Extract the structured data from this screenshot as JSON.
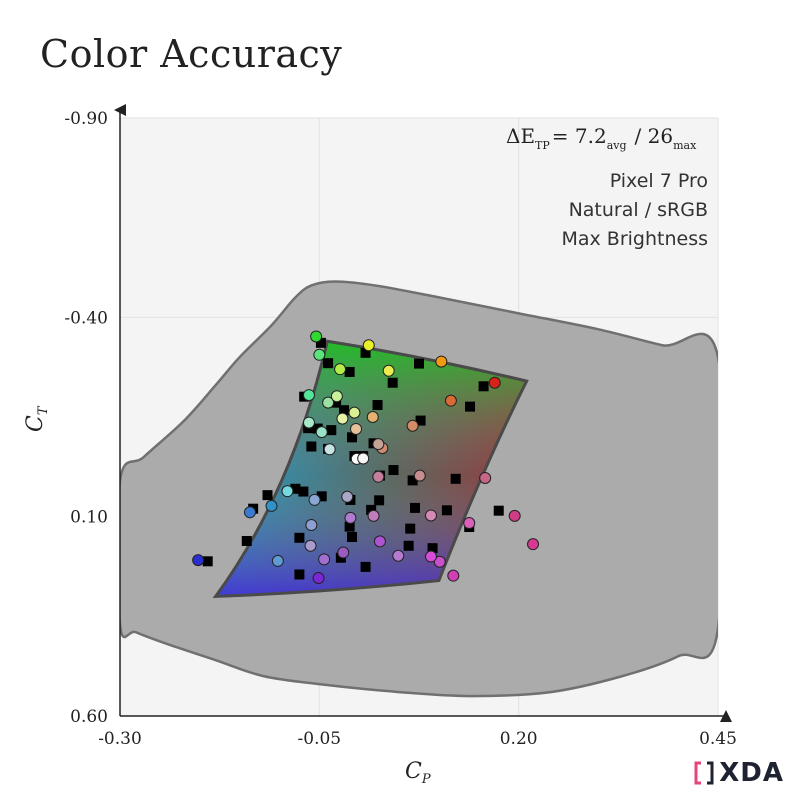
{
  "title": "Color Accuracy",
  "logo_text": "XDA",
  "colors": {
    "plot_bg": "#f4f4f4",
    "outer_gamut": "#ababab",
    "outer_gamut_stroke": "#707070",
    "inner_gamut_stroke": "#505050",
    "logo_accent": "#e5457a"
  },
  "annotations": {
    "metric_prefix": "ΔE",
    "metric_prefix_sub": "TP",
    "metric_eq": "= 7.2",
    "metric_avg_sub": "avg",
    "metric_slash": "/ 26",
    "metric_max_sub": "max",
    "device": "Pixel 7 Pro",
    "mode": "Natural / sRGB",
    "brightness": "Max Brightness"
  },
  "chart_data": {
    "type": "scatter",
    "title": "Color Accuracy",
    "xlabel": "C",
    "xlabel_sub": "P",
    "ylabel": "C",
    "ylabel_sub": "T",
    "xlim": [
      -0.3,
      0.45
    ],
    "ylim": [
      -0.9,
      0.6
    ],
    "y_inverted": true,
    "x_ticks": [
      "-0.30",
      "-0.05",
      "0.20",
      "0.45"
    ],
    "y_ticks": [
      "-0.90",
      "-0.40",
      "0.10",
      "0.60"
    ],
    "grid": true,
    "outer_gamut": [
      [
        -0.3,
        0.01
      ],
      [
        -0.27,
        -0.05
      ],
      [
        -0.22,
        -0.14
      ],
      [
        -0.18,
        -0.23
      ],
      [
        -0.15,
        -0.3
      ],
      [
        -0.11,
        -0.38
      ],
      [
        -0.08,
        -0.45
      ],
      [
        -0.06,
        -0.48
      ],
      [
        -0.03,
        -0.49
      ],
      [
        0.02,
        -0.48
      ],
      [
        0.1,
        -0.45
      ],
      [
        0.2,
        -0.41
      ],
      [
        0.3,
        -0.37
      ],
      [
        0.38,
        -0.33
      ],
      [
        0.45,
        -0.3
      ],
      [
        0.45,
        0.38
      ],
      [
        0.4,
        0.45
      ],
      [
        0.33,
        0.5
      ],
      [
        0.24,
        0.54
      ],
      [
        0.14,
        0.55
      ],
      [
        0.05,
        0.54
      ],
      [
        -0.05,
        0.52
      ],
      [
        -0.12,
        0.5
      ],
      [
        -0.18,
        0.46
      ],
      [
        -0.24,
        0.42
      ],
      [
        -0.28,
        0.39
      ],
      [
        -0.3,
        0.37
      ]
    ],
    "target_gamut": [
      [
        -0.04,
        -0.34
      ],
      [
        0.21,
        -0.24
      ],
      [
        0.1,
        0.26
      ],
      [
        -0.18,
        0.3
      ]
    ],
    "targets": [
      [
        -0.048,
        -0.336
      ],
      [
        0.008,
        -0.311
      ],
      [
        0.075,
        -0.284
      ],
      [
        0.156,
        -0.227
      ],
      [
        -0.039,
        -0.285
      ],
      [
        -0.012,
        -0.263
      ],
      [
        0.042,
        -0.236
      ],
      [
        0.139,
        -0.176
      ],
      [
        -0.069,
        -0.201
      ],
      [
        -0.029,
        -0.186
      ],
      [
        -0.019,
        -0.167
      ],
      [
        0.023,
        -0.18
      ],
      [
        0.077,
        -0.141
      ],
      [
        -0.064,
        -0.122
      ],
      [
        -0.052,
        -0.121
      ],
      [
        -0.035,
        -0.117
      ],
      [
        -0.009,
        -0.099
      ],
      [
        0.018,
        -0.084
      ],
      [
        -0.06,
        -0.076
      ],
      [
        -0.039,
        -0.07
      ],
      [
        -0.006,
        -0.052
      ],
      [
        0.005,
        -0.052
      ],
      [
        0.043,
        -0.017
      ],
      [
        0.026,
        -0.003
      ],
      [
        0.067,
        0.009
      ],
      [
        0.121,
        0.005
      ],
      [
        -0.08,
        0.03
      ],
      [
        -0.047,
        0.049
      ],
      [
        -0.011,
        0.058
      ],
      [
        0.025,
        0.059
      ],
      [
        0.07,
        0.078
      ],
      [
        0.11,
        0.084
      ],
      [
        0.175,
        0.085
      ],
      [
        -0.133,
        0.08
      ],
      [
        -0.115,
        0.046
      ],
      [
        -0.07,
        0.037
      ],
      [
        -0.012,
        0.125
      ],
      [
        0.015,
        0.083
      ],
      [
        0.064,
        0.13
      ],
      [
        0.138,
        0.126
      ],
      [
        -0.075,
        0.153
      ],
      [
        -0.009,
        0.151
      ],
      [
        0.062,
        0.173
      ],
      [
        0.092,
        0.179
      ],
      [
        -0.19,
        0.212
      ],
      [
        -0.141,
        0.161
      ],
      [
        -0.075,
        0.245
      ],
      [
        -0.023,
        0.203
      ],
      [
        0.008,
        0.226
      ]
    ],
    "measured": [
      [
        -0.054,
        -0.352,
        "#2fd92f"
      ],
      [
        0.012,
        -0.33,
        "#e8f02a"
      ],
      [
        0.103,
        -0.289,
        "#f39a10"
      ],
      [
        0.17,
        -0.236,
        "#d8221a"
      ],
      [
        -0.05,
        -0.306,
        "#5ae57a"
      ],
      [
        -0.024,
        -0.27,
        "#b3ee46"
      ],
      [
        0.037,
        -0.266,
        "#ebec4f"
      ],
      [
        0.115,
        -0.191,
        "#d86a35"
      ],
      [
        -0.063,
        -0.205,
        "#55e59a"
      ],
      [
        -0.039,
        -0.186,
        "#9be1a4"
      ],
      [
        -0.028,
        -0.202,
        "#c9f19b"
      ],
      [
        0.017,
        -0.15,
        "#e4b173"
      ],
      [
        0.067,
        -0.128,
        "#d28d68"
      ],
      [
        -0.047,
        -0.112,
        "#96e3c8"
      ],
      [
        -0.021,
        -0.146,
        "#e6f3a4"
      ],
      [
        -0.006,
        -0.161,
        "#d9ef93"
      ],
      [
        -0.004,
        -0.12,
        "#e6c29b"
      ],
      [
        0.029,
        -0.072,
        "#cf8b72"
      ],
      [
        -0.063,
        -0.136,
        "#a7e8c9"
      ],
      [
        -0.037,
        -0.069,
        "#c8e2e5"
      ],
      [
        -0.003,
        -0.045,
        "#ffffff"
      ],
      [
        0.005,
        -0.046,
        "#f6f6f6"
      ],
      [
        0.024,
        -0.082,
        "#c7a397"
      ],
      [
        0.024,
        0.0,
        "#c37f9d"
      ],
      [
        0.076,
        -0.003,
        "#c78d91"
      ],
      [
        0.158,
        0.003,
        "#c76687"
      ],
      [
        -0.09,
        0.036,
        "#75dadf"
      ],
      [
        -0.056,
        0.058,
        "#8aa6d2"
      ],
      [
        -0.015,
        0.05,
        "#a9a6c8"
      ],
      [
        0.018,
        0.098,
        "#c27cbd"
      ],
      [
        0.09,
        0.097,
        "#d48ab5"
      ],
      [
        0.138,
        0.116,
        "#d95fbb"
      ],
      [
        0.195,
        0.098,
        "#d03c86"
      ],
      [
        -0.137,
        0.089,
        "#3a7ad1"
      ],
      [
        -0.11,
        0.073,
        "#2f92c9"
      ],
      [
        -0.06,
        0.121,
        "#8ea0d3"
      ],
      [
        -0.011,
        0.103,
        "#b07bd0"
      ],
      [
        0.026,
        0.162,
        "#ad55d0"
      ],
      [
        0.101,
        0.213,
        "#c94fcd"
      ],
      [
        0.218,
        0.169,
        "#d6398f"
      ],
      [
        -0.061,
        0.173,
        "#a99ccc"
      ],
      [
        -0.02,
        0.19,
        "#9a5bc2"
      ],
      [
        0.049,
        0.198,
        "#b77ad1"
      ],
      [
        0.09,
        0.2,
        "#d74cd8"
      ],
      [
        -0.202,
        0.209,
        "#2a2fd2"
      ],
      [
        -0.102,
        0.211,
        "#5e9bd3"
      ],
      [
        -0.051,
        0.254,
        "#7b27d4"
      ],
      [
        -0.044,
        0.207,
        "#a06fcf"
      ],
      [
        0.118,
        0.248,
        "#d13eb5"
      ]
    ]
  }
}
